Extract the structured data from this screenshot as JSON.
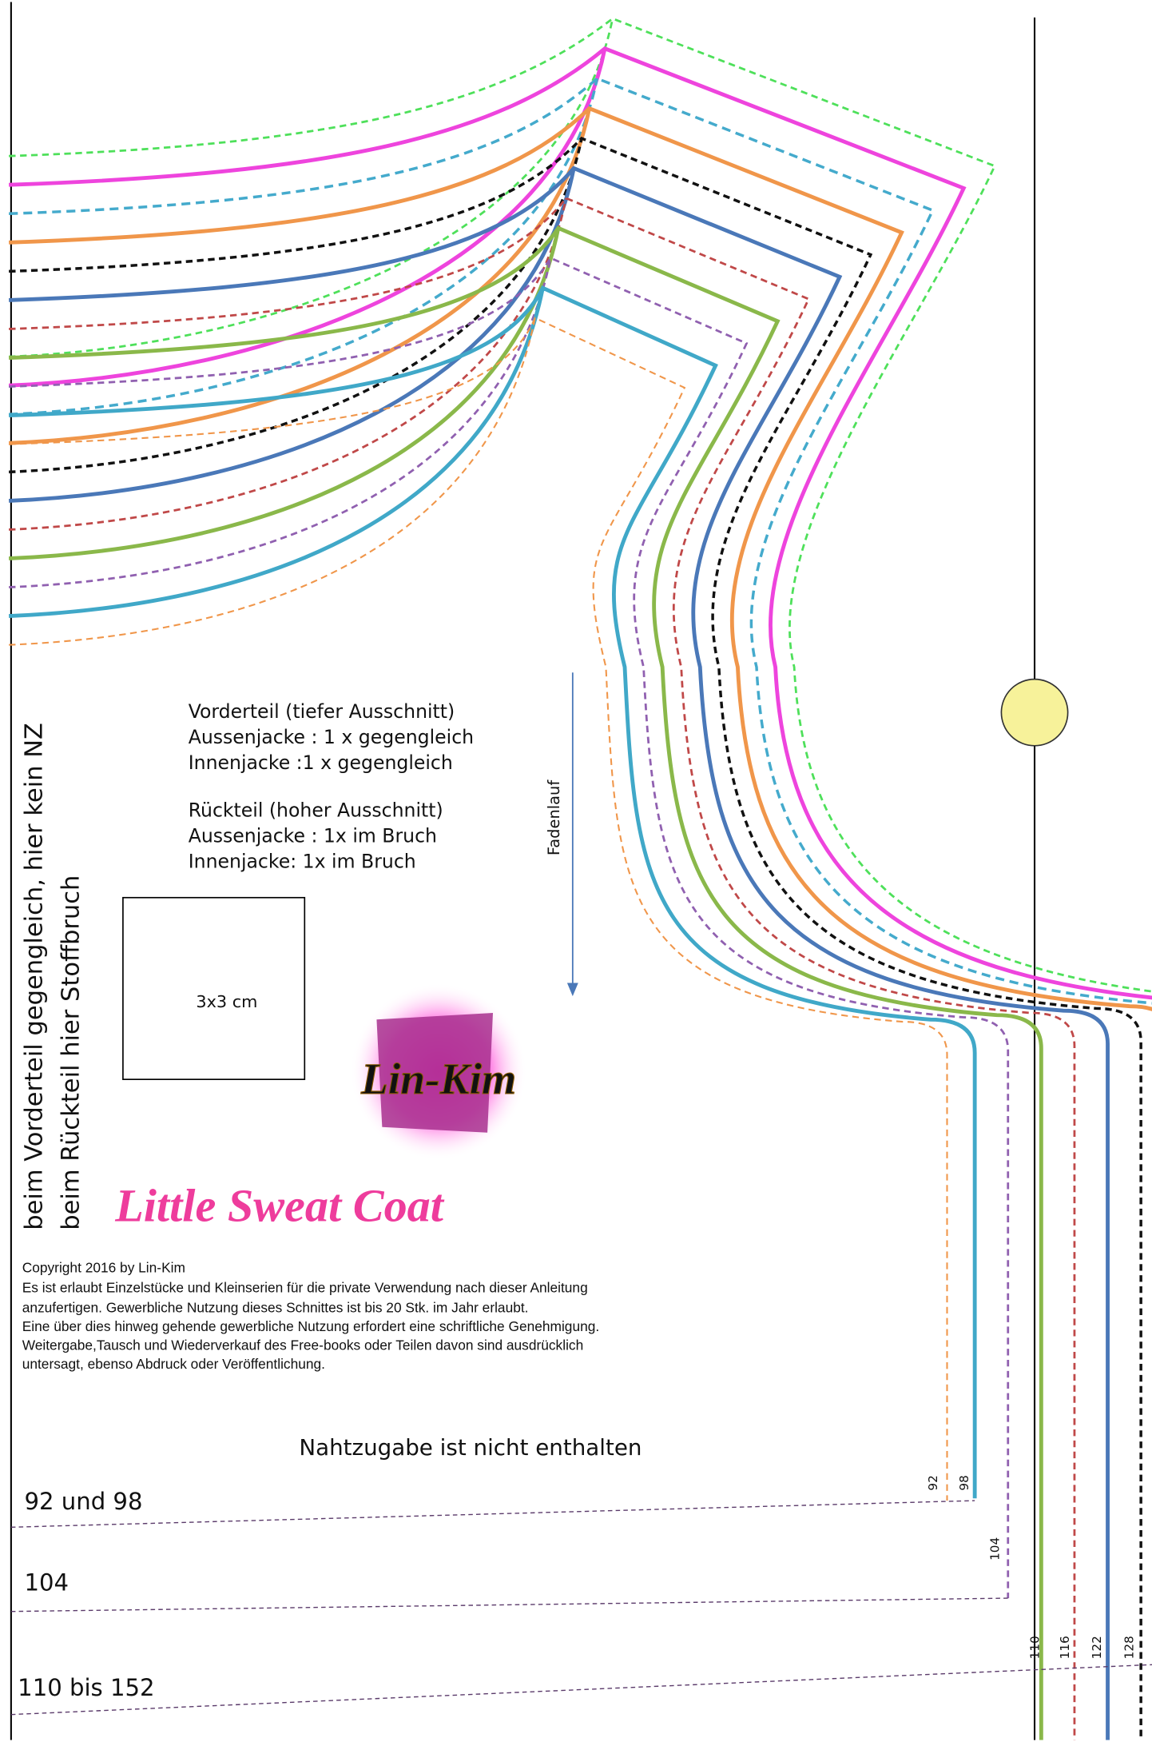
{
  "side_text": [
    "beim Vorderteil gegengleich, hier kein NZ",
    "beim Rückteil hier Stoffbruch"
  ],
  "notes": [
    "Vorderteil (tiefer Ausschnitt)",
    "Aussenjacke : 1 x gegengleich",
    "Innenjacke :1 x gegengleich",
    "Rückteil (hoher Ausschnitt)",
    "Aussenjacke : 1x im Bruch",
    "Innenjacke: 1x im Bruch"
  ],
  "grain_label": "Fadenlauf",
  "scale_label": "3x3 cm",
  "logo": "Lin-Kim",
  "title": "Little Sweat Coat",
  "copyright": [
    "Copyright 2016 by Lin-Kim",
    "Es ist erlaubt Einzelstücke und Kleinserien für die private Verwendung nach dieser Anleitung",
    "anzufertigen. Gewerbliche Nutzung dieses Schnittes ist bis 20 Stk. im Jahr erlaubt.",
    "Eine über dies hinweg gehende gewerbliche Nutzung erfordert eine schriftliche Genehmigung.",
    "Weitergabe,Tausch und Wiederverkauf des Free-books oder Teilen davon sind ausdrücklich",
    "untersagt, ebenso Abdruck oder Veröffentlichung."
  ],
  "seam_allowance": "Nahtzugabe ist nicht enthalten",
  "size_lines": [
    "92 und 98",
    "104",
    "110 bis 152"
  ],
  "size_markers": [
    "92",
    "98",
    "104",
    "110",
    "116",
    "122",
    "128"
  ]
}
